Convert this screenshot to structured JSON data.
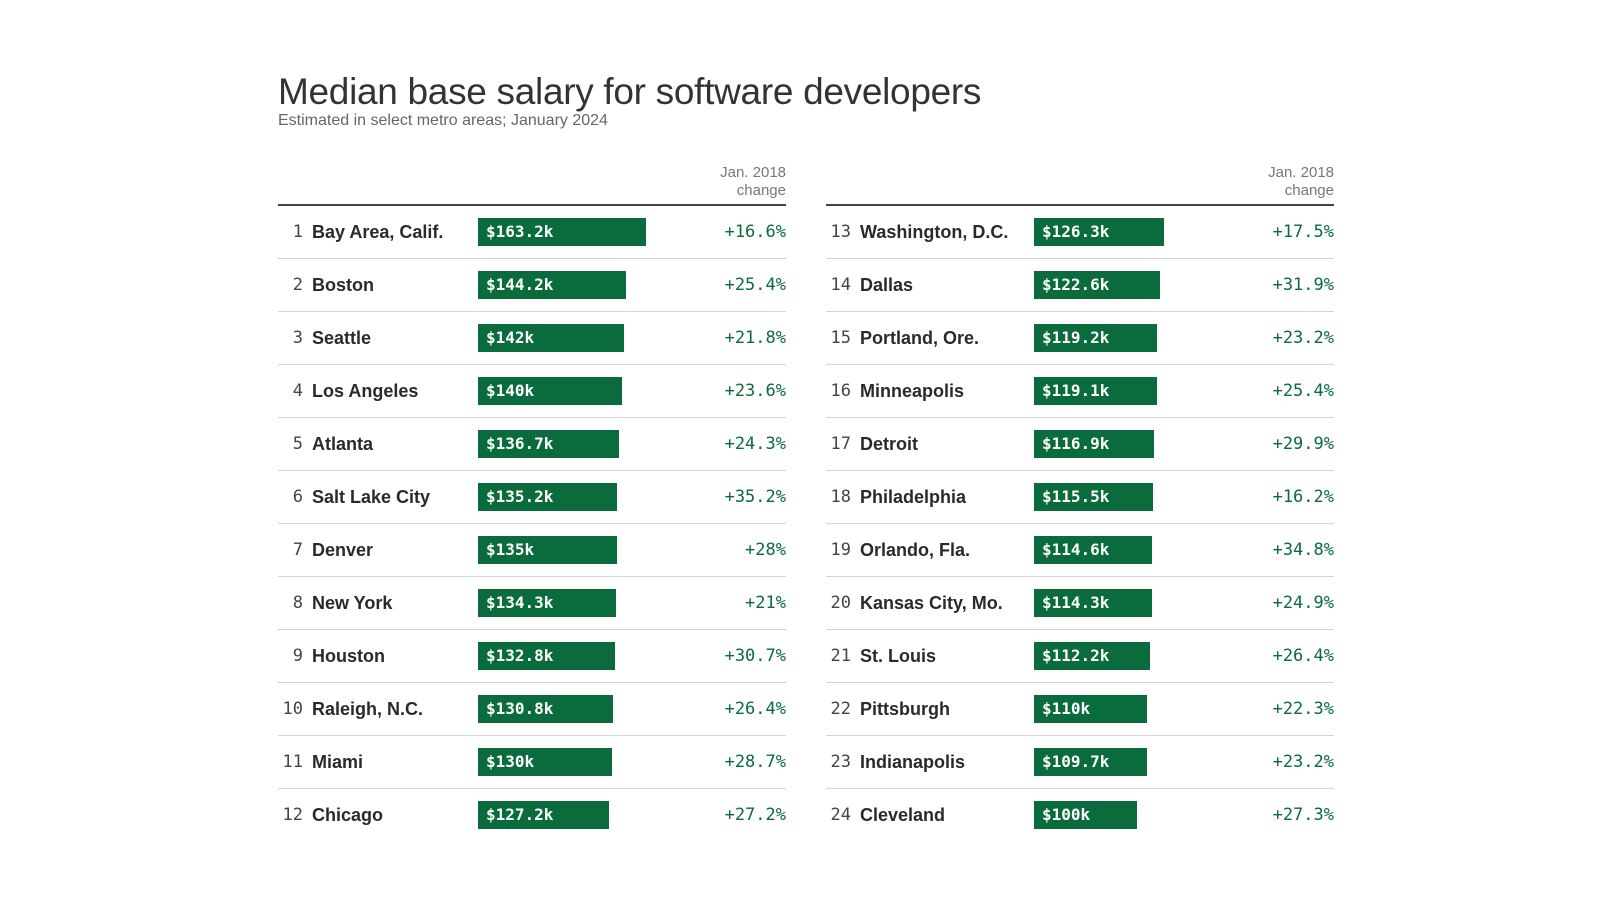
{
  "chart_data": {
    "type": "table",
    "title": "Median base salary for software developers",
    "subtitle": "Estimated in select metro areas; January 2024",
    "change_header": "Jan. 2018 change",
    "unit": "$ thousands",
    "bar_color": "#0a6b3c",
    "rows": [
      {
        "rank": "1",
        "city": "Bay Area, Calif.",
        "salary": 163.2,
        "salary_label": "$163.2k",
        "change": "+16.6%"
      },
      {
        "rank": "2",
        "city": "Boston",
        "salary": 144.2,
        "salary_label": "$144.2k",
        "change": "+25.4%"
      },
      {
        "rank": "3",
        "city": "Seattle",
        "salary": 142,
        "salary_label": "$142k",
        "change": "+21.8%"
      },
      {
        "rank": "4",
        "city": "Los Angeles",
        "salary": 140,
        "salary_label": "$140k",
        "change": "+23.6%"
      },
      {
        "rank": "5",
        "city": "Atlanta",
        "salary": 136.7,
        "salary_label": "$136.7k",
        "change": "+24.3%"
      },
      {
        "rank": "6",
        "city": "Salt Lake City",
        "salary": 135.2,
        "salary_label": "$135.2k",
        "change": "+35.2%"
      },
      {
        "rank": "7",
        "city": "Denver",
        "salary": 135,
        "salary_label": "$135k",
        "change": "+28%"
      },
      {
        "rank": "8",
        "city": "New York",
        "salary": 134.3,
        "salary_label": "$134.3k",
        "change": "+21%"
      },
      {
        "rank": "9",
        "city": "Houston",
        "salary": 132.8,
        "salary_label": "$132.8k",
        "change": "+30.7%"
      },
      {
        "rank": "10",
        "city": "Raleigh, N.C.",
        "salary": 130.8,
        "salary_label": "$130.8k",
        "change": "+26.4%"
      },
      {
        "rank": "11",
        "city": "Miami",
        "salary": 130,
        "salary_label": "$130k",
        "change": "+28.7%"
      },
      {
        "rank": "12",
        "city": "Chicago",
        "salary": 127.2,
        "salary_label": "$127.2k",
        "change": "+27.2%"
      },
      {
        "rank": "13",
        "city": "Washington, D.C.",
        "salary": 126.3,
        "salary_label": "$126.3k",
        "change": "+17.5%"
      },
      {
        "rank": "14",
        "city": "Dallas",
        "salary": 122.6,
        "salary_label": "$122.6k",
        "change": "+31.9%"
      },
      {
        "rank": "15",
        "city": "Portland, Ore.",
        "salary": 119.2,
        "salary_label": "$119.2k",
        "change": "+23.2%"
      },
      {
        "rank": "16",
        "city": "Minneapolis",
        "salary": 119.1,
        "salary_label": "$119.1k",
        "change": "+25.4%"
      },
      {
        "rank": "17",
        "city": "Detroit",
        "salary": 116.9,
        "salary_label": "$116.9k",
        "change": "+29.9%"
      },
      {
        "rank": "18",
        "city": "Philadelphia",
        "salary": 115.5,
        "salary_label": "$115.5k",
        "change": "+16.2%"
      },
      {
        "rank": "19",
        "city": "Orlando, Fla.",
        "salary": 114.6,
        "salary_label": "$114.6k",
        "change": "+34.8%"
      },
      {
        "rank": "20",
        "city": "Kansas City, Mo.",
        "salary": 114.3,
        "salary_label": "$114.3k",
        "change": "+24.9%"
      },
      {
        "rank": "21",
        "city": "St. Louis",
        "salary": 112.2,
        "salary_label": "$112.2k",
        "change": "+26.4%"
      },
      {
        "rank": "22",
        "city": "Pittsburgh",
        "salary": 110,
        "salary_label": "$110k",
        "change": "+22.3%"
      },
      {
        "rank": "23",
        "city": "Indianapolis",
        "salary": 109.7,
        "salary_label": "$109.7k",
        "change": "+23.2%"
      },
      {
        "rank": "24",
        "city": "Cleveland",
        "salary": 100,
        "salary_label": "$100k",
        "change": "+27.3%"
      }
    ]
  }
}
